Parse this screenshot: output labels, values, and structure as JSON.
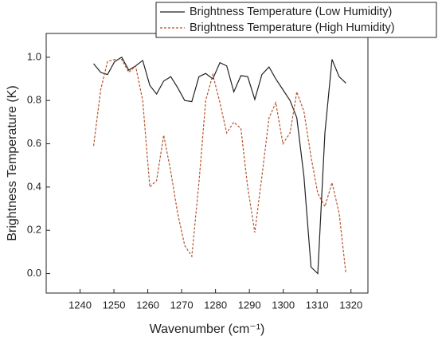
{
  "chart_data": {
    "type": "line",
    "x_label": "Wavenumber (cm⁻¹)",
    "y_label": "Brightness Temperature (K)",
    "x": [
      1244,
      1246.1,
      1248.1,
      1250.2,
      1252.3,
      1254.4,
      1256.4,
      1258.5,
      1260.6,
      1262.6,
      1264.7,
      1266.8,
      1268.8,
      1270.9,
      1273,
      1275.1,
      1277.1,
      1279.2,
      1281.3,
      1283.3,
      1285.4,
      1287.5,
      1289.5,
      1291.6,
      1293.7,
      1295.8,
      1297.8,
      1299.9,
      1302,
      1304,
      1306.1,
      1308.2,
      1310.2,
      1312.3,
      1314.4,
      1316.5,
      1318.5
    ],
    "series": [
      {
        "name": "Brightness Temperature (Low Humidity)",
        "color": "#222222",
        "dash": "solid",
        "values": [
          0.97,
          0.93,
          0.92,
          0.98,
          1.0,
          0.94,
          0.96,
          0.985,
          0.87,
          0.83,
          0.89,
          0.91,
          0.86,
          0.8,
          0.795,
          0.91,
          0.925,
          0.9,
          0.975,
          0.96,
          0.84,
          0.915,
          0.91,
          0.805,
          0.92,
          0.955,
          0.9,
          0.85,
          0.8,
          0.72,
          0.45,
          0.03,
          0.0,
          0.65,
          0.99,
          0.91,
          0.88
        ]
      },
      {
        "name": "Brightness Temperature (High Humidity)",
        "color": "#b5532e",
        "dash": "dashed",
        "values": [
          0.59,
          0.85,
          0.98,
          0.99,
          0.99,
          0.93,
          0.96,
          0.8,
          0.4,
          0.43,
          0.64,
          0.47,
          0.28,
          0.13,
          0.08,
          0.42,
          0.8,
          0.92,
          0.79,
          0.65,
          0.7,
          0.67,
          0.4,
          0.19,
          0.45,
          0.72,
          0.79,
          0.6,
          0.65,
          0.84,
          0.75,
          0.54,
          0.37,
          0.31,
          0.42,
          0.28,
          0.0
        ]
      }
    ],
    "xlim": [
      1230,
      1325
    ],
    "xticks": [
      1240,
      1250,
      1260,
      1270,
      1280,
      1290,
      1300,
      1310,
      1320
    ],
    "ylim": [
      -0.09,
      1.11
    ],
    "yticks": [
      {
        "value": 0,
        "label": "0.0"
      },
      0.2,
      0.4,
      0.6,
      0.8,
      {
        "value": 1,
        "label": "1.0"
      }
    ],
    "legend": "top-right",
    "grid": false
  }
}
